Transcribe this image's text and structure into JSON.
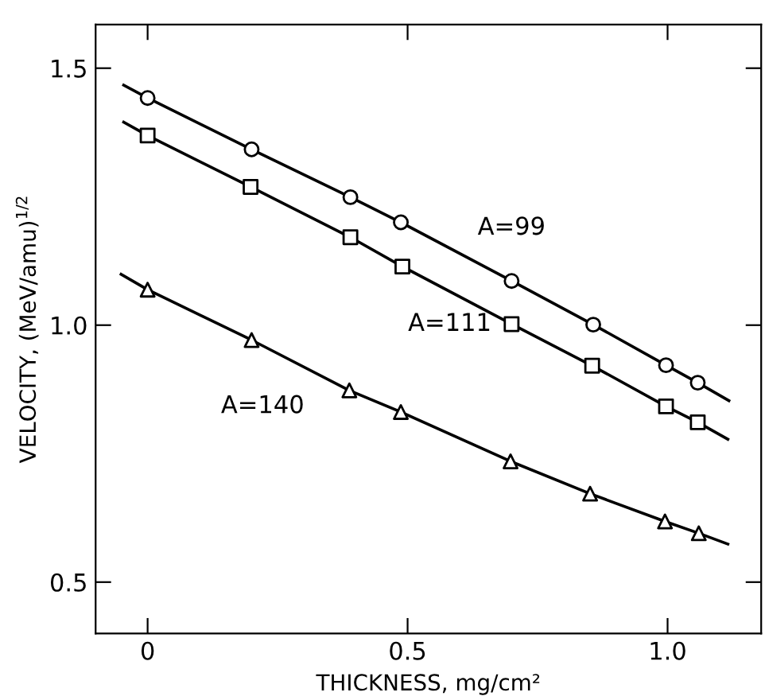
{
  "chart_data": {
    "type": "line",
    "xlabel": "THICKNESS, mg/cm²",
    "ylabel": "VELOCITY, (MeV/amu)$^{1/2}$",
    "xlim": [
      -0.1,
      1.18
    ],
    "ylim": [
      0.4,
      1.585
    ],
    "xticks": [
      0,
      0.5,
      {
        "value": 1.0,
        "label": "1.0"
      }
    ],
    "yticks": [
      0.5,
      {
        "value": 1.0,
        "label": "1.0"
      },
      1.5
    ],
    "grid": false,
    "legend": false,
    "series": [
      {
        "marker": "none",
        "color": "#000000",
        "x": [
          -0.046,
          0,
          0.2,
          0.39,
          0.487,
          0.7,
          0.857,
          0.997,
          1.058,
          1.118
        ],
        "values": [
          1.467,
          1.442,
          1.342,
          1.249,
          1.2,
          1.086,
          1.001,
          0.922,
          0.888,
          0.853
        ]
      },
      {
        "marker": "none",
        "color": "#000000",
        "x": [
          -0.046,
          0,
          0.198,
          0.39,
          0.49,
          0.7,
          0.855,
          0.997,
          1.058,
          1.116
        ],
        "values": [
          1.395,
          1.369,
          1.269,
          1.171,
          1.114,
          1.002,
          0.921,
          0.842,
          0.811,
          0.778
        ]
      },
      {
        "marker": "none",
        "color": "#000000",
        "x": [
          -0.051,
          0,
          0.2,
          0.388,
          0.487,
          0.698,
          0.851,
          0.995,
          1.06,
          1.116
        ],
        "values": [
          1.099,
          1.069,
          0.971,
          0.873,
          0.831,
          0.735,
          0.672,
          0.618,
          0.595,
          0.574
        ]
      },
      {
        "type": "scatter",
        "name": "A=99",
        "marker": "circle",
        "color": "#000000",
        "x": [
          0,
          0.2,
          0.39,
          0.487,
          0.7,
          0.857,
          0.997,
          1.058
        ],
        "values": [
          1.442,
          1.342,
          1.249,
          1.2,
          1.086,
          1.001,
          0.922,
          0.888
        ]
      },
      {
        "type": "scatter",
        "name": "A=111",
        "marker": "square",
        "color": "#000000",
        "x": [
          0,
          0.198,
          0.39,
          0.49,
          0.7,
          0.855,
          0.997,
          1.058
        ],
        "values": [
          1.369,
          1.269,
          1.171,
          1.114,
          1.002,
          0.921,
          0.842,
          0.811
        ]
      },
      {
        "type": "scatter",
        "name": "A=140",
        "marker": "triangle",
        "color": "#000000",
        "x": [
          0,
          0.2,
          0.388,
          0.487,
          0.698,
          0.851,
          0.995,
          1.06
        ],
        "values": [
          1.069,
          0.971,
          0.873,
          0.831,
          0.735,
          0.672,
          0.618,
          0.595
        ]
      }
    ]
  }
}
